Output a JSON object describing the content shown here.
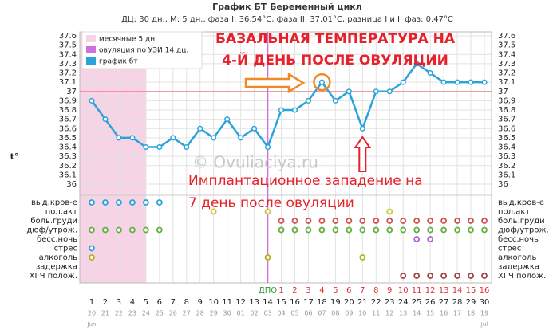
{
  "chart_data": {
    "type": "line",
    "title": "График БТ  Беременный цикл",
    "subtitle": "ДЦ: 30 дн., М: 5 дн., фаза I: 36.54°С, фаза II: 37.01°С, разница I и II фаз: 0.47°С",
    "y_label": "t°",
    "categories": [
      "1",
      "2",
      "3",
      "4",
      "5",
      "6",
      "7",
      "8",
      "9",
      "10",
      "11",
      "12",
      "13",
      "14",
      "15",
      "16",
      "17",
      "18",
      "19",
      "20",
      "21",
      "22",
      "23",
      "24",
      "25",
      "26",
      "27",
      "28",
      "29",
      "30"
    ],
    "dates": [
      "20",
      "21",
      "22",
      "23",
      "24",
      "25",
      "26",
      "27",
      "28",
      "29",
      "30",
      "01",
      "02",
      "03",
      "04",
      "05",
      "06",
      "07",
      "08",
      "09",
      "10",
      "11",
      "12",
      "13",
      "14",
      "15",
      "16",
      "17",
      "18",
      "19"
    ],
    "dpo_labels": [
      null,
      null,
      null,
      null,
      null,
      null,
      null,
      null,
      null,
      null,
      null,
      null,
      null,
      "ДПО",
      "1",
      "2",
      "3",
      "4",
      "5",
      "6",
      "7",
      "8",
      "9",
      "10",
      "11",
      "12",
      "13",
      "14",
      "15",
      "16"
    ],
    "months": [
      {
        "label": "Jun",
        "day": 1
      },
      {
        "label": "Jul",
        "day": 30
      }
    ],
    "series": [
      {
        "name": "график бт",
        "color": "#29a3d9",
        "values": [
          36.9,
          36.7,
          36.5,
          36.5,
          36.4,
          36.4,
          36.5,
          36.4,
          36.6,
          36.5,
          36.7,
          36.5,
          36.6,
          36.4,
          36.8,
          36.8,
          36.9,
          37.1,
          36.9,
          37.0,
          36.6,
          37.0,
          37.0,
          37.1,
          37.3,
          37.2,
          37.1,
          37.1,
          37.1,
          37.1
        ]
      }
    ],
    "coverline": 37.0,
    "period": {
      "label": "месячные 5 дн.",
      "from": 1,
      "to": 5,
      "color": "#f7d3e6"
    },
    "ovulation": {
      "label": "овуляция по УЗИ 14 дц.",
      "day": 14,
      "color": "#d070e0"
    },
    "ylim": [
      36,
      37.6
    ],
    "yticks": [
      36,
      36.1,
      36.2,
      36.3,
      36.4,
      36.5,
      36.6,
      36.7,
      36.8,
      36.9,
      37,
      37.1,
      37.2,
      37.3,
      37.4,
      37.5,
      37.6
    ],
    "grid": true,
    "symptoms": [
      {
        "name": "выд.кров-е",
        "color": "#29a3d9",
        "days": [
          1,
          2,
          3,
          4,
          5,
          6
        ]
      },
      {
        "name": "пол.акт",
        "color": "#c8c832",
        "days": [
          10,
          14,
          23
        ]
      },
      {
        "name": "боль.груди",
        "color": "#d05050",
        "days": [
          15,
          16,
          17,
          18,
          19,
          20,
          21,
          22,
          23,
          24,
          25,
          26,
          27,
          28,
          29,
          30
        ]
      },
      {
        "name": "дюф/утрож.",
        "color": "#60b040",
        "days": [
          1,
          2,
          3,
          4,
          5,
          6,
          15,
          16,
          17,
          18,
          19,
          20,
          21,
          22,
          23,
          24,
          25,
          26,
          27,
          28,
          29,
          30
        ]
      },
      {
        "name": "бесс.ночь",
        "color": "#b060e0",
        "days": [
          25,
          26
        ]
      },
      {
        "name": "стрес",
        "color": "#29a3d9",
        "days": [
          1
        ]
      },
      {
        "name": "алкоголь",
        "color": "#b0b020",
        "days": [
          1,
          14,
          21
        ]
      },
      {
        "name": "задержка",
        "color": "#a04040",
        "days": []
      },
      {
        "name": "ХГЧ полож.",
        "color": "#a04040",
        "days": [
          24,
          25,
          26,
          27,
          28,
          29,
          30
        ]
      }
    ],
    "headline": [
      "БАЗАЛЬНАЯ ТЕМПЕРАТУРА НА",
      "4-Й ДЕНЬ ПОСЛЕ ОВУЛЯЦИИ"
    ],
    "headline_day": 18,
    "implant_note": [
      "Имплантационное западение на",
      "7 день после овуляции"
    ],
    "implant_day": 21,
    "watermark": "© Ovuliaciya.ru"
  }
}
